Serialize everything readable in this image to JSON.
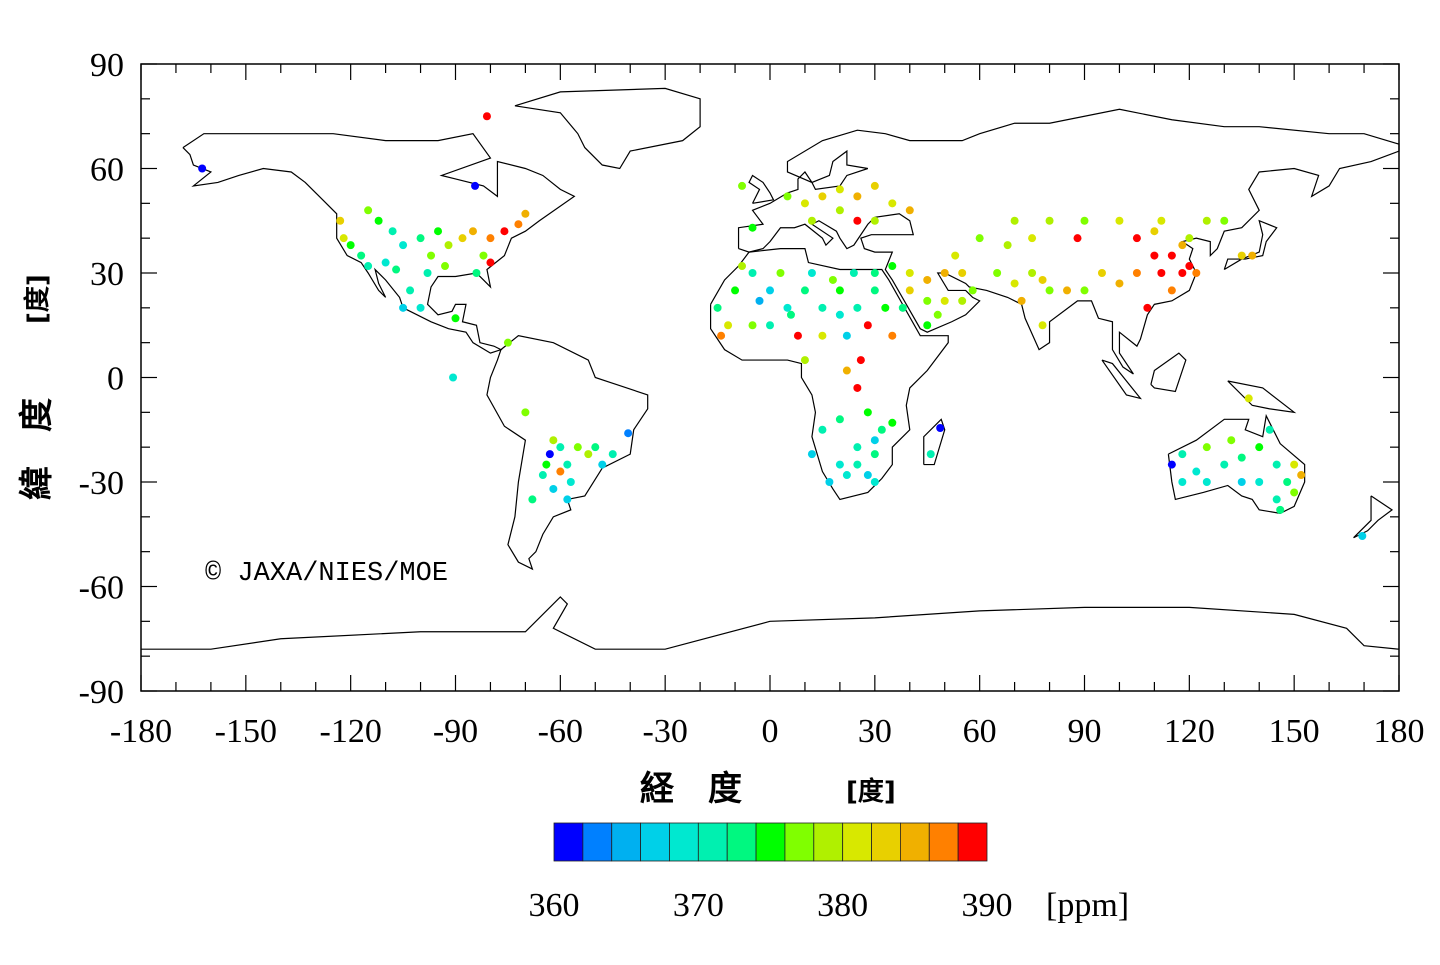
{
  "copyright": "© JAXA/NIES/MOE",
  "chart_data": {
    "type": "scatter",
    "title": "",
    "xlabel": "経　度",
    "xlabel_unit": "[度]",
    "ylabel": "緯　度",
    "ylabel_unit": "[度]",
    "xlim": [
      -180,
      180
    ],
    "ylim": [
      -90,
      90
    ],
    "xticks": [
      "-180",
      "-150",
      "-120",
      "-90",
      "-60",
      "-30",
      "0",
      "30",
      "60",
      "90",
      "120",
      "150",
      "180"
    ],
    "yticks": [
      "90",
      "60",
      "30",
      "0",
      "-30",
      "-60",
      "-90"
    ],
    "colorbar": {
      "range": [
        360,
        390
      ],
      "ticks": [
        "360",
        "370",
        "380",
        "390"
      ],
      "unit": "[ppm]",
      "colors": [
        "#0000FF",
        "#0080FF",
        "#00B0F0",
        "#00D0E8",
        "#00E8D0",
        "#00F0B0",
        "#00F880",
        "#00FF00",
        "#80FF00",
        "#B0F000",
        "#D8E800",
        "#E8D000",
        "#F0B000",
        "#FF8000",
        "#FF0000"
      ]
    },
    "points_lon_lat_ppm": [
      [
        -123,
        45,
        383
      ],
      [
        -122,
        40,
        380
      ],
      [
        -115,
        48,
        376
      ],
      [
        -112,
        45,
        374
      ],
      [
        -108,
        42,
        370
      ],
      [
        -105,
        38,
        368
      ],
      [
        -110,
        33,
        368
      ],
      [
        -115,
        32,
        370
      ],
      [
        -100,
        40,
        372
      ],
      [
        -97,
        35,
        376
      ],
      [
        -95,
        42,
        374
      ],
      [
        -92,
        38,
        378
      ],
      [
        -88,
        40,
        382
      ],
      [
        -85,
        42,
        384
      ],
      [
        -80,
        40,
        386
      ],
      [
        -76,
        42,
        388
      ],
      [
        -82,
        35,
        376
      ],
      [
        -84,
        30,
        372
      ],
      [
        -98,
        30,
        370
      ],
      [
        -103,
        25,
        370
      ],
      [
        -100,
        20,
        368
      ],
      [
        -90,
        17,
        375
      ],
      [
        -72,
        44,
        386
      ],
      [
        -70,
        47,
        384
      ],
      [
        -80,
        33,
        389
      ],
      [
        -93,
        32,
        376
      ],
      [
        -105,
        20,
        366
      ],
      [
        -117,
        35,
        372
      ],
      [
        -120,
        38,
        374
      ],
      [
        -107,
        31,
        372
      ],
      [
        -162.5,
        60,
        360
      ],
      [
        -81,
        75,
        389
      ],
      [
        -84.4,
        55,
        361
      ],
      [
        -90.7,
        0,
        368
      ],
      [
        -75,
        10,
        376
      ],
      [
        -70,
        -10,
        376
      ],
      [
        -62,
        -18,
        378
      ],
      [
        -60,
        -20,
        371
      ],
      [
        -63,
        -22,
        360
      ],
      [
        -55,
        -20,
        376
      ],
      [
        -50,
        -20,
        372
      ],
      [
        -58,
        -25,
        370
      ],
      [
        -60,
        -27,
        386
      ],
      [
        -65,
        -28,
        370
      ],
      [
        -57,
        -30,
        368
      ],
      [
        -62,
        -32,
        366
      ],
      [
        -58,
        -35,
        366
      ],
      [
        -68,
        -35,
        372
      ],
      [
        -52,
        -22,
        378
      ],
      [
        -45,
        -22,
        370
      ],
      [
        -40.6,
        -16,
        362
      ],
      [
        -48,
        -25,
        366
      ],
      [
        -64,
        -25,
        374
      ],
      [
        -15,
        20,
        372
      ],
      [
        -10,
        25,
        374
      ],
      [
        -5,
        30,
        370
      ],
      [
        0,
        25,
        366
      ],
      [
        5,
        20,
        368
      ],
      [
        10,
        25,
        372
      ],
      [
        15,
        20,
        370
      ],
      [
        20,
        25,
        374
      ],
      [
        25,
        20,
        370
      ],
      [
        30,
        25,
        372
      ],
      [
        -12,
        15,
        380
      ],
      [
        -5,
        15,
        376
      ],
      [
        0,
        15,
        370
      ],
      [
        8,
        12,
        388
      ],
      [
        15,
        12,
        380
      ],
      [
        22,
        12,
        366
      ],
      [
        28,
        15,
        389
      ],
      [
        35,
        12,
        386
      ],
      [
        -8,
        32,
        378
      ],
      [
        3,
        30,
        376
      ],
      [
        12,
        30,
        368
      ],
      [
        18,
        28,
        376
      ],
      [
        24,
        30,
        370
      ],
      [
        30,
        30,
        372
      ],
      [
        -3,
        22,
        364
      ],
      [
        6,
        18,
        372
      ],
      [
        20,
        18,
        368
      ],
      [
        33,
        20,
        374
      ],
      [
        -14,
        12,
        386
      ],
      [
        26,
        5,
        389
      ],
      [
        22,
        2,
        384
      ],
      [
        10,
        5,
        378
      ],
      [
        5,
        52,
        376
      ],
      [
        10,
        50,
        380
      ],
      [
        15,
        52,
        382
      ],
      [
        20,
        54,
        380
      ],
      [
        25,
        52,
        384
      ],
      [
        30,
        55,
        382
      ],
      [
        35,
        50,
        380
      ],
      [
        12,
        45,
        378
      ],
      [
        25,
        45,
        388
      ],
      [
        40,
        48,
        384
      ],
      [
        -5,
        43,
        374
      ],
      [
        -8,
        55,
        376
      ],
      [
        20,
        48,
        378
      ],
      [
        30,
        45,
        378
      ],
      [
        15,
        -15,
        370
      ],
      [
        20,
        -12,
        372
      ],
      [
        28,
        -10,
        374
      ],
      [
        25,
        -20,
        370
      ],
      [
        20,
        -25,
        368
      ],
      [
        25,
        -25,
        370
      ],
      [
        30,
        -22,
        372
      ],
      [
        17,
        -30,
        366
      ],
      [
        22,
        -28,
        368
      ],
      [
        28,
        -28,
        366
      ],
      [
        32,
        -15,
        372
      ],
      [
        35,
        -13,
        374
      ],
      [
        25,
        -3,
        389
      ],
      [
        30,
        -18,
        366
      ],
      [
        12,
        -22,
        366
      ],
      [
        48.7,
        -14.5,
        361
      ],
      [
        46,
        -22,
        370
      ],
      [
        30,
        -30,
        368
      ],
      [
        40,
        25,
        382
      ],
      [
        45,
        22,
        376
      ],
      [
        50,
        22,
        380
      ],
      [
        45,
        28,
        384
      ],
      [
        40,
        30,
        380
      ],
      [
        55,
        22,
        378
      ],
      [
        48,
        18,
        376
      ],
      [
        38,
        20,
        372
      ],
      [
        50,
        30,
        384
      ],
      [
        55,
        30,
        382
      ],
      [
        45,
        15,
        374
      ],
      [
        58,
        25,
        376
      ],
      [
        35,
        32,
        374
      ],
      [
        53,
        35,
        380
      ],
      [
        65,
        30,
        376
      ],
      [
        70,
        27,
        380
      ],
      [
        72,
        22,
        384
      ],
      [
        75,
        30,
        378
      ],
      [
        78,
        28,
        382
      ],
      [
        80,
        25,
        376
      ],
      [
        85,
        25,
        384
      ],
      [
        90,
        25,
        376
      ],
      [
        68,
        38,
        378
      ],
      [
        75,
        40,
        380
      ],
      [
        60,
        40,
        376
      ],
      [
        70,
        45,
        378
      ],
      [
        80,
        45,
        378
      ],
      [
        90,
        45,
        376
      ],
      [
        95,
        30,
        382
      ],
      [
        100,
        27,
        384
      ],
      [
        78,
        15,
        380
      ],
      [
        88,
        40,
        389
      ],
      [
        105,
        40,
        389
      ],
      [
        110,
        42,
        382
      ],
      [
        100,
        45,
        380
      ],
      [
        110,
        35,
        389
      ],
      [
        115,
        35,
        389
      ],
      [
        118,
        30,
        388
      ],
      [
        115,
        25,
        386
      ],
      [
        120,
        32,
        389
      ],
      [
        112,
        30,
        388
      ],
      [
        105,
        30,
        386
      ],
      [
        120,
        40,
        378
      ],
      [
        125,
        45,
        378
      ],
      [
        130,
        45,
        376
      ],
      [
        135,
        35,
        382
      ],
      [
        108,
        20,
        389
      ],
      [
        118,
        38,
        384
      ],
      [
        122,
        30,
        386
      ],
      [
        112,
        45,
        380
      ],
      [
        138,
        35,
        384
      ],
      [
        115,
        -25,
        360
      ],
      [
        118,
        -22,
        370
      ],
      [
        122,
        -27,
        368
      ],
      [
        125,
        -20,
        376
      ],
      [
        130,
        -25,
        370
      ],
      [
        135,
        -23,
        372
      ],
      [
        140,
        -20,
        374
      ],
      [
        145,
        -25,
        370
      ],
      [
        148,
        -30,
        372
      ],
      [
        150,
        -25,
        380
      ],
      [
        152,
        -28,
        384
      ],
      [
        145,
        -35,
        370
      ],
      [
        140,
        -30,
        368
      ],
      [
        135,
        -30,
        366
      ],
      [
        125,
        -30,
        368
      ],
      [
        118,
        -30,
        368
      ],
      [
        132,
        -18,
        376
      ],
      [
        143,
        -15,
        370
      ],
      [
        146,
        -38,
        372
      ],
      [
        150,
        -33,
        376
      ],
      [
        137,
        -6,
        381
      ],
      [
        169.5,
        -45.5,
        366
      ]
    ]
  }
}
